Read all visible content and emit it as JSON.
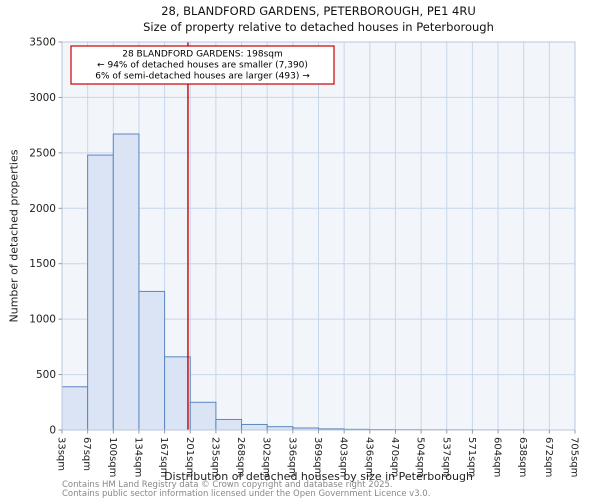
{
  "page": {
    "title_line1": "28, BLANDFORD GARDENS, PETERBOROUGH, PE1 4RU",
    "title_line2": "Size of property relative to detached houses in Peterborough",
    "footer_line1": "Contains HM Land Registry data © Crown copyright and database right 2025.",
    "footer_line2": "Contains public sector information licensed under the Open Government Licence v3.0."
  },
  "chart_data": {
    "type": "bar",
    "title": "28, BLANDFORD GARDENS, PETERBOROUGH, PE1 4RU — Size of property relative to detached houses in Peterborough",
    "xlabel": "Distribution of detached houses by size in Peterborough",
    "ylabel": "Number of detached properties",
    "categories": [
      "33sqm",
      "67sqm",
      "100sqm",
      "134sqm",
      "167sqm",
      "201sqm",
      "235sqm",
      "268sqm",
      "302sqm",
      "336sqm",
      "369sqm",
      "403sqm",
      "436sqm",
      "470sqm",
      "504sqm",
      "537sqm",
      "571sqm",
      "604sqm",
      "638sqm",
      "672sqm",
      "705sqm"
    ],
    "bin_edges_sqm": [
      33,
      67,
      100,
      134,
      167,
      201,
      235,
      268,
      302,
      336,
      369,
      403,
      436,
      470,
      504,
      537,
      571,
      604,
      638,
      672,
      705
    ],
    "values": [
      390,
      2480,
      2670,
      1250,
      660,
      250,
      95,
      50,
      30,
      18,
      10,
      6,
      4,
      3,
      2,
      2,
      1,
      1,
      0,
      0
    ],
    "ylim": [
      0,
      3500
    ],
    "y_ticks": [
      0,
      500,
      1000,
      1500,
      2000,
      2500,
      3000,
      3500
    ],
    "grid": true,
    "legend": "none",
    "marker_line": {
      "value_sqm": 198,
      "color": "#cc0000"
    },
    "annotation_lines": [
      "28 BLANDFORD GARDENS: 198sqm",
      "← 94% of detached houses are smaller (7,390)",
      "6% of semi-detached houses are larger (493) →"
    ],
    "colors": {
      "bar_fill": "#dae4f4",
      "bar_edge": "#5b87c0",
      "grid": "#c8d6ec",
      "plot_bg": "#f2f6fb",
      "plot_border": "#b8c6dc",
      "marker": "#cc0000",
      "annotation_border": "#cc0000",
      "annotation_bg": "#ffffff",
      "tick_text": "#222222"
    }
  }
}
